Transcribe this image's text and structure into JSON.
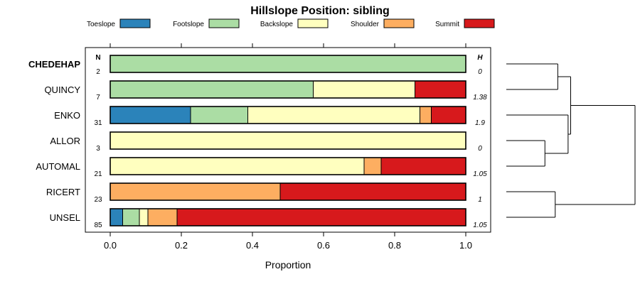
{
  "chart_data": {
    "type": "bar",
    "orientation": "horizontal",
    "stacked": true,
    "title": "Hillslope Position: sibling",
    "xlabel": "Proportion",
    "ylabel": "",
    "xlim": [
      0,
      1
    ],
    "x_ticks": [
      "0.0",
      "0.2",
      "0.4",
      "0.6",
      "0.8",
      "1.0"
    ],
    "legend_position": "top",
    "n_header": "N",
    "h_header": "H",
    "categories": [
      "CHEDEHAP",
      "QUINCY",
      "ENKO",
      "ALLOR",
      "AUTOMAL",
      "RICERT",
      "UNSEL"
    ],
    "highlighted_category": "CHEDEHAP",
    "n_values": [
      "2",
      "7",
      "31",
      "3",
      "21",
      "23",
      "85"
    ],
    "h_values": [
      "0",
      "1.38",
      "1.9",
      "0",
      "1.05",
      "1",
      "1.05"
    ],
    "series": [
      {
        "name": "Toeslope",
        "color": "#2b83ba",
        "values": [
          0,
          0,
          0.226,
          0,
          0,
          0,
          0.035
        ]
      },
      {
        "name": "Footslope",
        "color": "#abdda4",
        "values": [
          1,
          0.571,
          0.161,
          0,
          0,
          0,
          0.047
        ]
      },
      {
        "name": "Backslope",
        "color": "#ffffbf",
        "values": [
          0,
          0.286,
          0.484,
          1,
          0.714,
          0,
          0.024
        ]
      },
      {
        "name": "Shoulder",
        "color": "#fdae61",
        "values": [
          0,
          0,
          0.032,
          0,
          0.048,
          0.478,
          0.082
        ]
      },
      {
        "name": "Summit",
        "color": "#d7191c",
        "values": [
          0,
          0.143,
          0.097,
          0,
          0.238,
          0.522,
          0.812
        ]
      }
    ],
    "grid": false,
    "dendrogram": {
      "merges": [
        {
          "left": "CHEDEHAP",
          "right": "QUINCY",
          "height": 0.2
        },
        {
          "left": "ALLOR",
          "right": "AUTOMAL",
          "height": 0.15
        },
        {
          "left": "ENKO",
          "right": "m2",
          "height": 0.24
        },
        {
          "left": "RICERT",
          "right": "UNSEL",
          "height": 0.19
        },
        {
          "left": "m1",
          "right": "m3",
          "height": 0.25
        },
        {
          "left": "m5",
          "right": "m4",
          "height": 0.5
        }
      ]
    }
  }
}
